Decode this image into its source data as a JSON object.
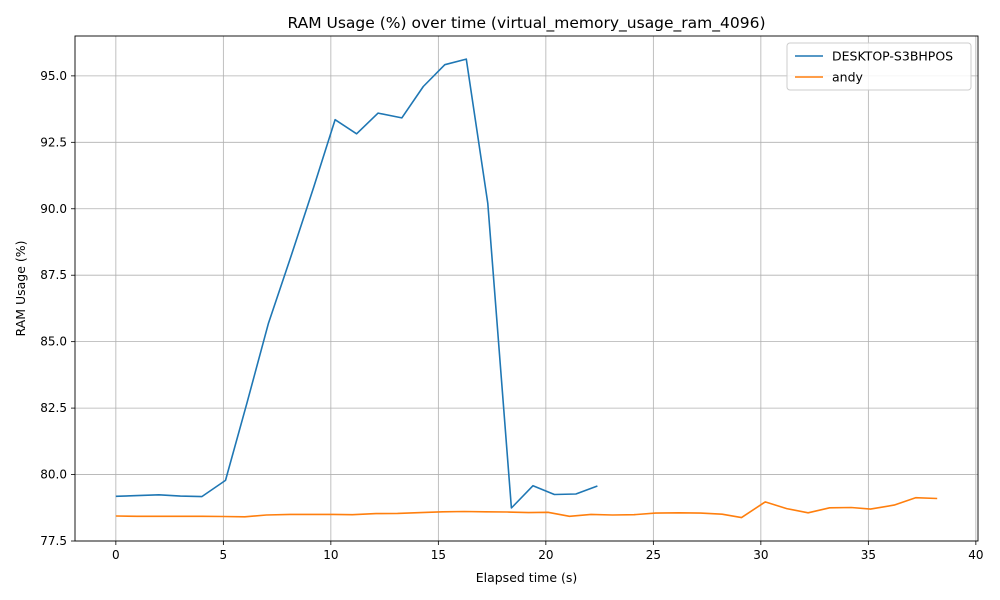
{
  "chart_data": {
    "type": "line",
    "title": "RAM Usage (%) over time (virtual_memory_usage_ram_4096)",
    "xlabel": "Elapsed time (s)",
    "ylabel": "RAM Usage (%)",
    "xlim": [
      -1.9,
      40.1
    ],
    "ylim": [
      77.5,
      96.5
    ],
    "xticks": [
      0,
      5,
      10,
      15,
      20,
      25,
      30,
      35,
      40
    ],
    "xtick_labels": [
      "0",
      "5",
      "10",
      "15",
      "20",
      "25",
      "30",
      "35",
      "40"
    ],
    "yticks": [
      77.5,
      80.0,
      82.5,
      85.0,
      87.5,
      90.0,
      92.5,
      95.0
    ],
    "ytick_labels": [
      "77.5",
      "80.0",
      "82.5",
      "85.0",
      "87.5",
      "90.0",
      "92.5",
      "95.0"
    ],
    "grid": true,
    "legend_position": "top-right",
    "series": [
      {
        "name": "DESKTOP-S3BHPOS",
        "color": "#1f77b4",
        "x": [
          0,
          1,
          2,
          3,
          4,
          5.1,
          6.1,
          7.1,
          8.1,
          9.2,
          10.2,
          11.2,
          12.2,
          13.3,
          14.3,
          15.3,
          16.3,
          17.3,
          18.4,
          19.4,
          20.4,
          21.4,
          22.4
        ],
        "y": [
          79.18,
          79.21,
          79.24,
          79.19,
          79.17,
          79.78,
          82.7,
          85.7,
          88.1,
          90.8,
          93.35,
          92.82,
          93.6,
          93.42,
          94.6,
          95.42,
          95.63,
          90.2,
          78.74,
          79.58,
          79.25,
          79.27,
          79.57
        ]
      },
      {
        "name": "andy",
        "color": "#ff7f0e",
        "x": [
          0,
          1,
          2,
          3,
          4,
          5,
          6,
          7,
          8.1,
          9.1,
          10.1,
          11,
          12.1,
          13.1,
          14.2,
          15.2,
          16.2,
          17.2,
          18.2,
          19.2,
          20.1,
          21.1,
          22.1,
          23.1,
          24.1,
          25.1,
          26.2,
          27.2,
          28.2,
          29.1,
          30.2,
          31.2,
          32.2,
          33.2,
          34.2,
          35.1,
          36.2,
          37.2,
          38.2
        ],
        "y": [
          78.44,
          78.43,
          78.43,
          78.43,
          78.43,
          78.42,
          78.41,
          78.48,
          78.5,
          78.5,
          78.5,
          78.49,
          78.53,
          78.54,
          78.57,
          78.6,
          78.61,
          78.6,
          78.59,
          78.57,
          78.58,
          78.43,
          78.5,
          78.48,
          78.49,
          78.55,
          78.56,
          78.55,
          78.51,
          78.38,
          78.97,
          78.72,
          78.56,
          78.75,
          78.76,
          78.7,
          78.85,
          79.13,
          79.1
        ]
      }
    ]
  }
}
